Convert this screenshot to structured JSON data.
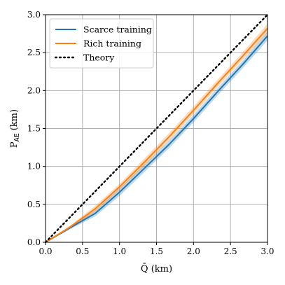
{
  "chart_data": {
    "type": "line",
    "xlabel": "Q̄ (km)",
    "ylabel_main": "P",
    "ylabel_sub": "AE",
    "ylabel_unit": "(km)",
    "xlim": [
      0.0,
      3.0
    ],
    "ylim": [
      0.0,
      3.0
    ],
    "xticks": [
      "0.0",
      "0.5",
      "1.0",
      "1.5",
      "2.0",
      "2.5",
      "3.0"
    ],
    "yticks": [
      "0.0",
      "0.5",
      "1.0",
      "1.5",
      "2.0",
      "2.5",
      "3.0"
    ],
    "grid": true,
    "legend_position": "top-left",
    "series": [
      {
        "name": "Scarce training",
        "color": "#1f77b4",
        "style": "solid",
        "band": true,
        "x": [
          0.0,
          0.33,
          0.67,
          1.0,
          1.33,
          1.67,
          2.0,
          2.33,
          2.67,
          3.0
        ],
        "y": [
          0.0,
          0.19,
          0.38,
          0.66,
          0.97,
          1.29,
          1.63,
          1.99,
          2.35,
          2.72
        ],
        "y_low": [
          0.0,
          0.17,
          0.34,
          0.61,
          0.92,
          1.24,
          1.58,
          1.94,
          2.3,
          2.66
        ],
        "y_high": [
          0.0,
          0.21,
          0.42,
          0.71,
          1.02,
          1.34,
          1.68,
          2.04,
          2.4,
          2.78
        ]
      },
      {
        "name": "Rich training",
        "color": "#ff7f0e",
        "style": "solid",
        "band": true,
        "x": [
          0.0,
          0.33,
          0.67,
          1.0,
          1.33,
          1.67,
          2.0,
          2.33,
          2.67,
          3.0
        ],
        "y": [
          0.0,
          0.2,
          0.44,
          0.73,
          1.05,
          1.39,
          1.74,
          2.1,
          2.46,
          2.82
        ],
        "y_low": [
          0.0,
          0.18,
          0.4,
          0.69,
          1.0,
          1.34,
          1.69,
          2.05,
          2.41,
          2.76
        ],
        "y_high": [
          0.0,
          0.22,
          0.48,
          0.77,
          1.1,
          1.44,
          1.79,
          2.15,
          2.51,
          2.88
        ]
      },
      {
        "name": "Theory",
        "color": "#000000",
        "style": "dotted",
        "band": false,
        "x": [
          0.0,
          3.0
        ],
        "y": [
          0.0,
          3.0
        ]
      }
    ]
  }
}
